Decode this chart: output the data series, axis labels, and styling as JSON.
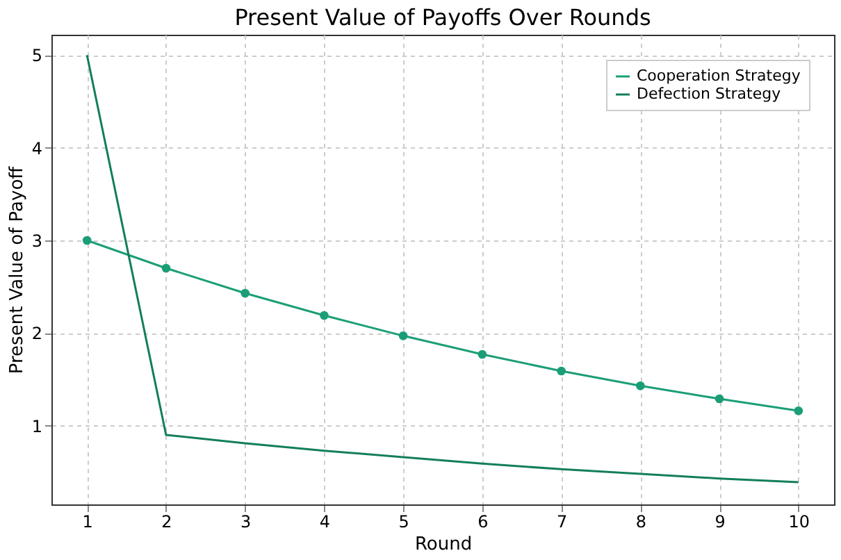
{
  "chart_data": {
    "type": "line",
    "title": "Present Value of Payoffs Over Rounds",
    "xlabel": "Round",
    "ylabel": "Present Value of Payoff",
    "x": [
      1,
      2,
      3,
      4,
      5,
      6,
      7,
      8,
      9,
      10
    ],
    "series": [
      {
        "name": "Cooperation Strategy",
        "color": "#1b9e77",
        "marker": "circle",
        "values": [
          3,
          2.7,
          2.43,
          2.19,
          1.97,
          1.77,
          1.59,
          1.43,
          1.29,
          1.16
        ]
      },
      {
        "name": "Defection Strategy",
        "color": "#137e5c",
        "marker": "none",
        "values": [
          5,
          0.9,
          0.81,
          0.73,
          0.66,
          0.59,
          0.53,
          0.48,
          0.43,
          0.39
        ]
      }
    ],
    "xlim": [
      0.55,
      10.45
    ],
    "xticks": [
      1,
      2,
      3,
      4,
      5,
      6,
      7,
      8,
      9,
      10
    ],
    "ylim": [
      0.15,
      5.22
    ],
    "yticks": [
      1,
      2,
      3,
      4,
      5
    ],
    "grid": true,
    "legend": "top right",
    "line_style": "solid"
  }
}
